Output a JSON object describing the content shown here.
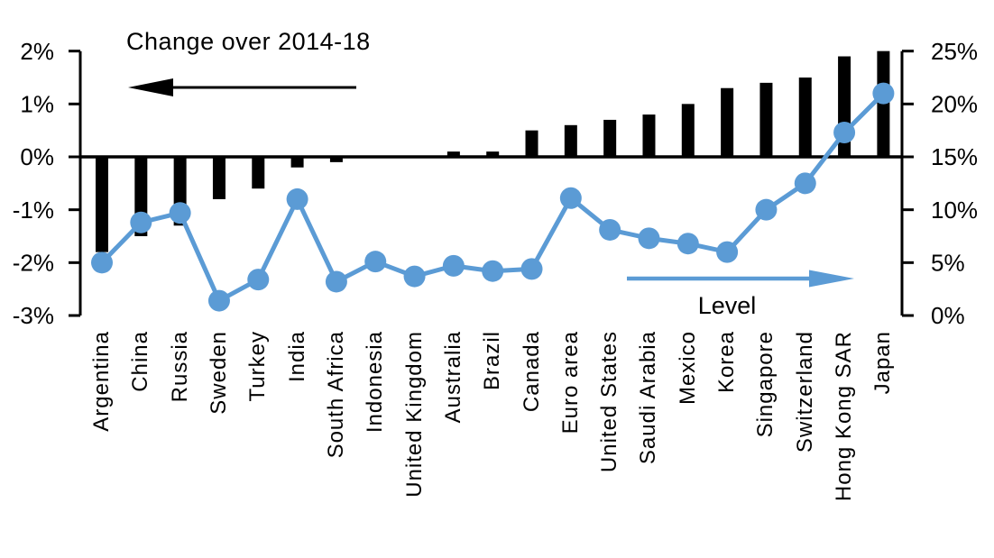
{
  "annotations": {
    "change_title": "Change over 2014-18",
    "level_label": "Level"
  },
  "left_axis": {
    "tick_labels": [
      "2%",
      "1%",
      "0%",
      "-1%",
      "-2%",
      "-3%"
    ],
    "tick_values": [
      2,
      1,
      0,
      -1,
      -2,
      -3
    ],
    "min": -3,
    "max": 2
  },
  "right_axis": {
    "tick_labels": [
      "25%",
      "20%",
      "15%",
      "10%",
      "5%",
      "0%"
    ],
    "tick_values": [
      25,
      20,
      15,
      10,
      5,
      0
    ],
    "min": 0,
    "max": 25
  },
  "colors": {
    "bar": "#000000",
    "line": "#5b9bd5",
    "axis": "#000000"
  },
  "chart_data": {
    "type": "bar",
    "subtype": "dual-axis bar + line with markers",
    "title": "Change over 2014-18",
    "xlabel": "",
    "ylabel_left": "Change over 2014-18 (%)",
    "ylabel_right": "Level (%)",
    "ylim_left": [
      -3,
      2
    ],
    "ylim_right": [
      0,
      25
    ],
    "grid": false,
    "legend_position": "in-plot arrows",
    "categories": [
      "Argentina",
      "China",
      "Russia",
      "Sweden",
      "Turkey",
      "India",
      "South Africa",
      "Indonesia",
      "United Kingdom",
      "Australia",
      "Brazil",
      "Canada",
      "Euro area",
      "United States",
      "Saudi Arabia",
      "Mexico",
      "Korea",
      "Singapore",
      "Switzerland",
      "Hong Kong SAR",
      "Japan"
    ],
    "series": [
      {
        "name": "Change over 2014-18",
        "type": "bar",
        "axis": "left",
        "unit": "%",
        "values": [
          -1.8,
          -1.5,
          -1.3,
          -0.8,
          -0.6,
          -0.2,
          -0.1,
          0.0,
          0.0,
          0.1,
          0.1,
          0.5,
          0.6,
          0.7,
          0.8,
          1.0,
          1.3,
          1.4,
          1.5,
          1.9,
          2.0
        ]
      },
      {
        "name": "Level",
        "type": "line",
        "axis": "right",
        "unit": "%",
        "values": [
          5.0,
          8.8,
          9.7,
          1.4,
          3.4,
          11.0,
          3.2,
          5.1,
          3.7,
          4.7,
          4.2,
          4.4,
          11.1,
          8.1,
          7.3,
          6.8,
          6.0,
          10.0,
          12.5,
          17.3,
          21.0
        ]
      }
    ]
  }
}
